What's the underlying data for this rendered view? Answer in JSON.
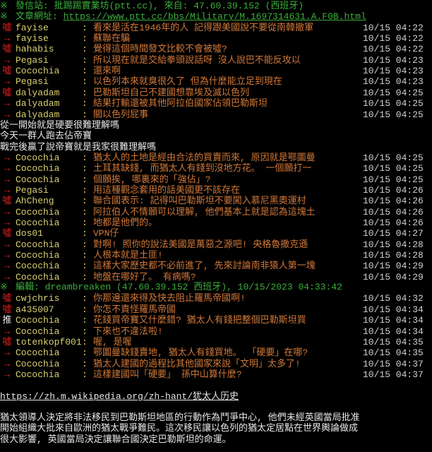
{
  "header": {
    "mark": "※",
    "station_label": "發信站: 批踢踢實業坊(ptt.cc), 來自: 47.60.39.152 (西班牙)",
    "url_label": "文章網址: ",
    "url": "https://www.ptt.cc/bbs/Military/M.1697314631.A.F0B.html"
  },
  "pushes_a": [
    {
      "tag": "噓",
      "type": "boo",
      "user": "fayise",
      "content": "看來是活在1946年的人 記得跟美國說不要從南韓撤軍",
      "time": "10/15 04:22"
    },
    {
      "tag": "→",
      "type": "arrow",
      "user": "fayise",
      "content": " 蘇聯在騙",
      "time": "10/15 04:22"
    },
    {
      "tag": "噓",
      "type": "boo",
      "user": "hahabis",
      "content": "覺得這個時間發文比較不會被噓?",
      "time": "10/15 04:22"
    },
    {
      "tag": "→",
      "type": "arrow",
      "user": "Pegasi",
      "content": "所以現在就是交給拳頭說話呀 沒人說巴不能反攻以",
      "time": "10/15 04:23"
    },
    {
      "tag": "噓",
      "type": "boo",
      "user": "Cocochia",
      "content": "還來啊",
      "time": "10/15 04:23"
    },
    {
      "tag": "→",
      "type": "arrow",
      "user": "Pegasi",
      "content": "以色列本來就臭很久了 但為什麼能立足到現在",
      "time": "10/15 04:23"
    },
    {
      "tag": "噓",
      "type": "boo",
      "user": "dalyadam",
      "content": "巴勒斯坦自己不建國想靠埃及滅以色列",
      "time": "10/15 04:25"
    },
    {
      "tag": "→",
      "type": "arrow",
      "user": "dalyadam",
      "content": "結果打輸還被其他阿拉伯國家佔領巴勒斯坦",
      "time": "10/15 04:25"
    },
    {
      "tag": "→",
      "type": "arrow",
      "user": "dalyadam",
      "content": "關以色列屁事",
      "time": "10/15 04:25"
    }
  ],
  "reply_lines": [
    "從一開始就是硬要很難理解嗎",
    "今天一群人跑去佔帝寶",
    "戰完後贏了說帝寶就是我家很難理解嗎"
  ],
  "pushes_b": [
    {
      "tag": "→",
      "type": "arrow",
      "user": "Cocochia",
      "content": "猶太人的土地是經由合法的買賣而來, 原因就是鄂圖曼",
      "time": "10/15 04:25"
    },
    {
      "tag": "→",
      "type": "arrow",
      "user": "Cocochia",
      "content": "土耳其缺錢, 而猶太人有錢到沒地方花。 一個願打一",
      "time": "10/15 04:25"
    },
    {
      "tag": "→",
      "type": "arrow",
      "user": "Cocochia",
      "content": "個願挨, 哪裏來的「強佔」?",
      "time": "10/15 04:25"
    },
    {
      "tag": "→",
      "type": "arrow",
      "user": "Pegasi",
      "content": "用這種觀念套用的話美國更不該存在",
      "time": "10/15 04:26"
    },
    {
      "tag": "噓",
      "type": "boo",
      "user": "AhCheng",
      "content": "聯合國表示: 記得叫巴勒斯坦不要闖入慕尼黑奧運村",
      "time": "10/15 04:26"
    },
    {
      "tag": "→",
      "type": "arrow",
      "user": "Cocochia",
      "content": "阿拉伯人不情願可以理解, 他們基本上就是認為這塊土",
      "time": "10/15 04:26"
    },
    {
      "tag": "→",
      "type": "arrow",
      "user": "Cocochia",
      "content": "地都是他們的。",
      "time": "10/15 04:26"
    },
    {
      "tag": "噓",
      "type": "boo",
      "user": "dos01",
      "content": "VPN仔",
      "time": "10/15 04:27"
    },
    {
      "tag": "→",
      "type": "arrow",
      "user": "Cocochia",
      "content": "對啊! 照你的說法美國是萬惡之源吧! 央格魯撒克遜",
      "time": "10/15 04:28"
    },
    {
      "tag": "→",
      "type": "arrow",
      "user": "Cocochia",
      "content": "人根本就是土匪!",
      "time": "10/15 04:28"
    },
    {
      "tag": "→",
      "type": "arrow",
      "user": "Cocochia",
      "content": "這樣大家歷史都不必前進了, 先來討論南非猿人第一塊",
      "time": "10/15 04:29"
    },
    {
      "tag": "→",
      "type": "arrow",
      "user": "Cocochia",
      "content": "地盤在哪好了。 有病嗎?",
      "time": "10/15 04:29"
    }
  ],
  "edit_line": "編輯: dreambreaken (47.60.39.152 西班牙), 10/15/2023 04:33:42",
  "pushes_c": [
    {
      "tag": "噓",
      "type": "boo",
      "user": "cwjchris",
      "content": "你那邊還來得及快去阻止羅馬帝國啊!",
      "time": "10/15 04:32"
    },
    {
      "tag": "噓",
      "type": "boo",
      "user": "a435007",
      "content": "你怎不責怪羅馬帝國",
      "time": "10/15 04:34"
    },
    {
      "tag": "推",
      "type": "push",
      "user": "Cocochia",
      "content": "花錢買帝寶又什麼錯? 猶太人有錢把整個巴勒斯坦買",
      "time": "10/15 04:34"
    },
    {
      "tag": "→",
      "type": "arrow",
      "user": "Cocochia",
      "content": "下來也不違法啦!",
      "time": "10/15 04:34"
    },
    {
      "tag": "噓",
      "type": "boo",
      "user": "totenkopf001",
      "content": "喔, 是喔",
      "time": "10/15 04:35"
    },
    {
      "tag": "→",
      "type": "arrow",
      "user": "Cocochia",
      "content": "鄂圖曼缺錢賣地, 猶太人有錢買地。 「硬要」在哪?",
      "time": "10/15 04:35"
    },
    {
      "tag": "→",
      "type": "arrow",
      "user": "Cocochia",
      "content": "猶太人建國的過程比其他國家來說「文明」太多了!",
      "time": "10/15 04:37"
    },
    {
      "tag": "→",
      "type": "arrow",
      "user": "Cocochia",
      "content": "這樣建國叫「硬要」 孫中山算什麼?",
      "time": "10/15 04:37"
    }
  ],
  "footer": {
    "wiki_url": "https://zh.m.wikipedia.org/zh-hant/犹太人历史",
    "paragraph": [
      "猶太領導人決定將非法移民到巴勒斯坦地區的行動作為鬥爭中心, 他們未經英國當局批准",
      "開始組織大批來自歐洲的猶太戰爭難民。這次移民讓以色列的猶太定居點在世界輿論做成",
      "很大影響, 英國當局決定讓聯合國決定巴勒斯坦的命運。"
    ]
  }
}
